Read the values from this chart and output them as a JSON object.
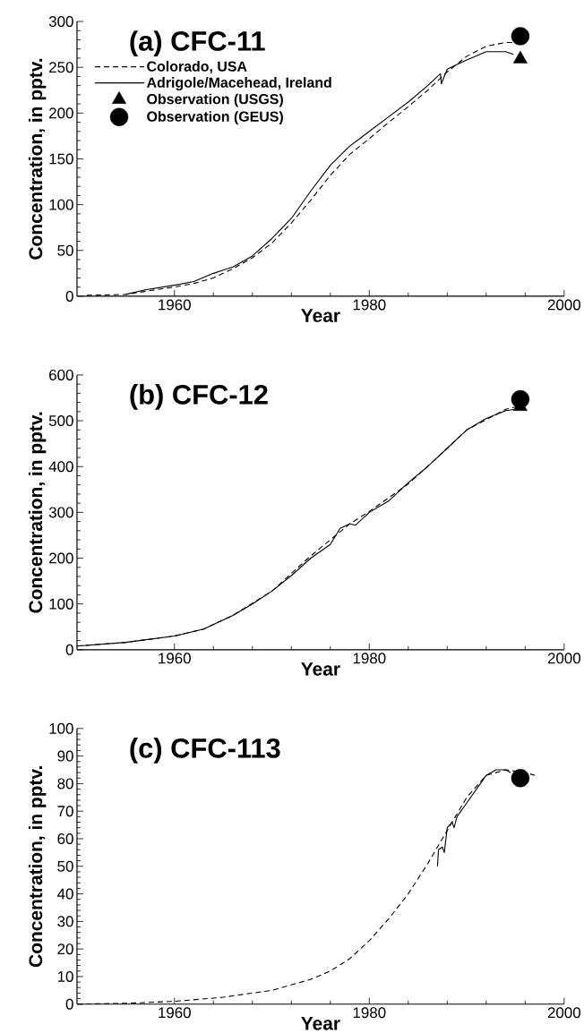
{
  "chart_data": [
    {
      "type": "line",
      "title": "(a) CFC-11",
      "xlabel": "Year",
      "ylabel": "Concentration, in pptv.",
      "xlim": [
        1950,
        2000
      ],
      "ylim": [
        0,
        300
      ],
      "xticks": [
        1960,
        1980,
        2000
      ],
      "yticks": [
        0,
        50,
        100,
        150,
        200,
        250,
        300
      ],
      "legend": "top left",
      "series": [
        {
          "name": "Colorado, USA",
          "type": "line",
          "line_style": "dashed",
          "color": "#000000",
          "x": [
            1951,
            1955,
            1958,
            1960,
            1962,
            1964,
            1966,
            1968,
            1970,
            1972,
            1974,
            1976,
            1978,
            1980,
            1982,
            1984,
            1986,
            1988,
            1990,
            1992,
            1994,
            1996
          ],
          "values": [
            1,
            2,
            7,
            10,
            14,
            20,
            30,
            42,
            58,
            80,
            105,
            132,
            155,
            172,
            190,
            207,
            225,
            245,
            262,
            273,
            277,
            277
          ]
        },
        {
          "name": "Adrigole/Macehead, Ireland",
          "type": "line",
          "line_style": "solid",
          "color": "#000000",
          "x": [
            1955,
            1957,
            1960,
            1962,
            1964,
            1966,
            1968,
            1970,
            1972,
            1974,
            1976,
            1978,
            1979,
            1980,
            1982,
            1984,
            1986,
            1987.3,
            1987.4,
            1988,
            1990,
            1992,
            1994,
            1994.8
          ],
          "values": [
            2,
            7,
            12,
            16,
            25,
            32,
            44,
            63,
            85,
            115,
            143,
            164,
            172,
            180,
            196,
            212,
            230,
            243,
            232,
            248,
            258,
            267,
            267,
            264
          ]
        },
        {
          "name": "Observation (USGS)",
          "type": "scatter",
          "marker": "triangle",
          "color": "#000000",
          "x": [
            1995.5
          ],
          "values": [
            259
          ]
        },
        {
          "name": "Observation (GEUS)",
          "type": "scatter",
          "marker": "circle",
          "color": "#000000",
          "x": [
            1995.5
          ],
          "values": [
            284
          ]
        }
      ]
    },
    {
      "type": "line",
      "title": "(b) CFC-12",
      "xlabel": "Year",
      "ylabel": "Concentration, in pptv.",
      "xlim": [
        1950,
        2000
      ],
      "ylim": [
        0,
        600
      ],
      "xticks": [
        1960,
        1980,
        2000
      ],
      "yticks": [
        0,
        100,
        200,
        300,
        400,
        500,
        600
      ],
      "series": [
        {
          "type": "line",
          "line_style": "dashed",
          "color": "#000000",
          "x": [
            1950,
            1955,
            1960,
            1963,
            1966,
            1970,
            1974,
            1976,
            1978,
            1980,
            1984,
            1988,
            1990,
            1994,
            1995
          ],
          "values": [
            8,
            16,
            30,
            45,
            75,
            128,
            205,
            240,
            275,
            302,
            362,
            440,
            480,
            525,
            530
          ]
        },
        {
          "type": "line",
          "line_style": "solid",
          "color": "#000000",
          "x": [
            1950,
            1955,
            1960,
            1963,
            1966,
            1968,
            1970,
            1972,
            1974,
            1976,
            1977,
            1978,
            1978.6,
            1980,
            1982,
            1983,
            1984,
            1986,
            1988,
            1990,
            1992,
            1994,
            1996
          ],
          "values": [
            8,
            16,
            30,
            45,
            75,
            100,
            128,
            162,
            200,
            230,
            265,
            275,
            272,
            300,
            325,
            345,
            365,
            400,
            440,
            480,
            505,
            522,
            528
          ]
        },
        {
          "type": "scatter",
          "marker": "triangle",
          "color": "#000000",
          "x": [
            1995.5
          ],
          "values": [
            531
          ]
        },
        {
          "type": "scatter",
          "marker": "circle",
          "color": "#000000",
          "x": [
            1995.5
          ],
          "values": [
            547
          ]
        }
      ]
    },
    {
      "type": "line",
      "title": "(c) CFC-113",
      "xlabel": "Year",
      "ylabel": "Concentration, in pptv.",
      "xlim": [
        1950,
        2000
      ],
      "ylim": [
        0,
        100
      ],
      "xticks": [
        1960,
        1980,
        2000
      ],
      "yticks": [
        0,
        10,
        20,
        30,
        40,
        50,
        60,
        70,
        80,
        90,
        100
      ],
      "series": [
        {
          "type": "line",
          "line_style": "dashed",
          "color": "#000000",
          "x": [
            1950,
            1955,
            1960,
            1965,
            1970,
            1974,
            1976,
            1978,
            1980,
            1982,
            1984,
            1986,
            1988,
            1990,
            1992,
            1994,
            1996,
            1997
          ],
          "values": [
            0,
            0.3,
            1,
            2.5,
            5,
            9,
            12,
            16.5,
            23,
            31,
            40,
            51,
            63,
            75,
            83,
            85,
            84,
            83
          ]
        },
        {
          "type": "line",
          "line_style": "solid",
          "color": "#000000",
          "x": [
            1987,
            1987.1,
            1987.5,
            1987.7,
            1988,
            1988.5,
            1988.7,
            1989,
            1990,
            1991,
            1992,
            1993,
            1994,
            1994.5
          ],
          "values": [
            50,
            56,
            57,
            55,
            64,
            66,
            64,
            68,
            73,
            78,
            83,
            85,
            85,
            84
          ]
        },
        {
          "type": "scatter",
          "marker": "circle",
          "color": "#000000",
          "x": [
            1995.5
          ],
          "values": [
            82
          ]
        }
      ]
    }
  ]
}
